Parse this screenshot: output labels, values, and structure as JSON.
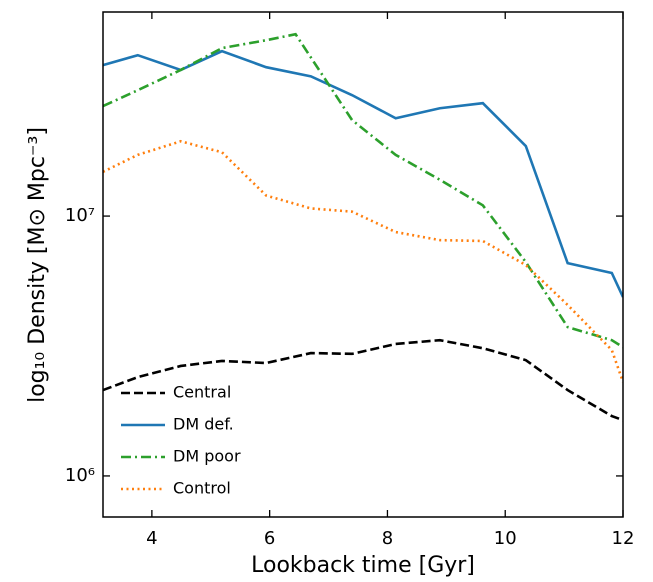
{
  "chart_data": {
    "type": "line",
    "xlabel": "Lookback time [Gyr]",
    "ylabel": "log₁₀ Density [M⊙ Mpc⁻³]",
    "xlim": [
      3.17,
      12
    ],
    "xticks": [
      4,
      6,
      8,
      10,
      12
    ],
    "ylim": [
      695000,
      61000000
    ],
    "yscale": "log",
    "yticks": [
      {
        "value": 1000000,
        "label": "10⁶"
      },
      {
        "value": 10000000,
        "label": "10⁷"
      }
    ],
    "legend": "lower left",
    "series": [
      {
        "name": "Central",
        "color": "#000000",
        "style": "dashed",
        "x": [
          3.17,
          3.76,
          4.49,
          5.19,
          5.94,
          6.7,
          7.4,
          8.14,
          8.89,
          9.62,
          10.35,
          11.06,
          11.81,
          12
        ],
        "values": [
          2140000,
          2400000,
          2650000,
          2770000,
          2720000,
          2970000,
          2950000,
          3220000,
          3330000,
          3100000,
          2790000,
          2140000,
          1700000,
          1640000
        ]
      },
      {
        "name": "DM def.",
        "color": "#1f77b4",
        "style": "solid",
        "x": [
          3.17,
          3.76,
          4.49,
          5.19,
          5.94,
          6.7,
          7.4,
          8.14,
          8.89,
          9.62,
          10.35,
          11.06,
          11.81,
          12
        ],
        "values": [
          38100000,
          41600000,
          36500000,
          43100000,
          37400000,
          34500000,
          29200000,
          23800000,
          26000000,
          27200000,
          18600000,
          6590000,
          6040000,
          4880000
        ]
      },
      {
        "name": "DM poor",
        "color": "#2ca02c",
        "style": "dashdot",
        "x": [
          3.17,
          3.76,
          4.49,
          5.19,
          5.94,
          6.44,
          7.4,
          8.14,
          8.89,
          9.62,
          10.35,
          11.06,
          11.81,
          12
        ],
        "values": [
          26500000,
          30500000,
          36500000,
          44300000,
          47500000,
          50100000,
          23400000,
          17200000,
          13800000,
          11000000,
          6650000,
          3740000,
          3330000,
          3130000
        ]
      },
      {
        "name": "Control",
        "color": "#ff7f0e",
        "style": "dotted",
        "x": [
          3.17,
          3.76,
          4.49,
          5.19,
          5.94,
          6.7,
          7.4,
          8.14,
          8.89,
          9.62,
          10.35,
          11.06,
          11.81,
          12
        ],
        "values": [
          14800000,
          17200000,
          19400000,
          17600000,
          12000000,
          10700000,
          10400000,
          8680000,
          8080000,
          8020000,
          6480000,
          4550000,
          3050000,
          2300000
        ]
      }
    ]
  }
}
